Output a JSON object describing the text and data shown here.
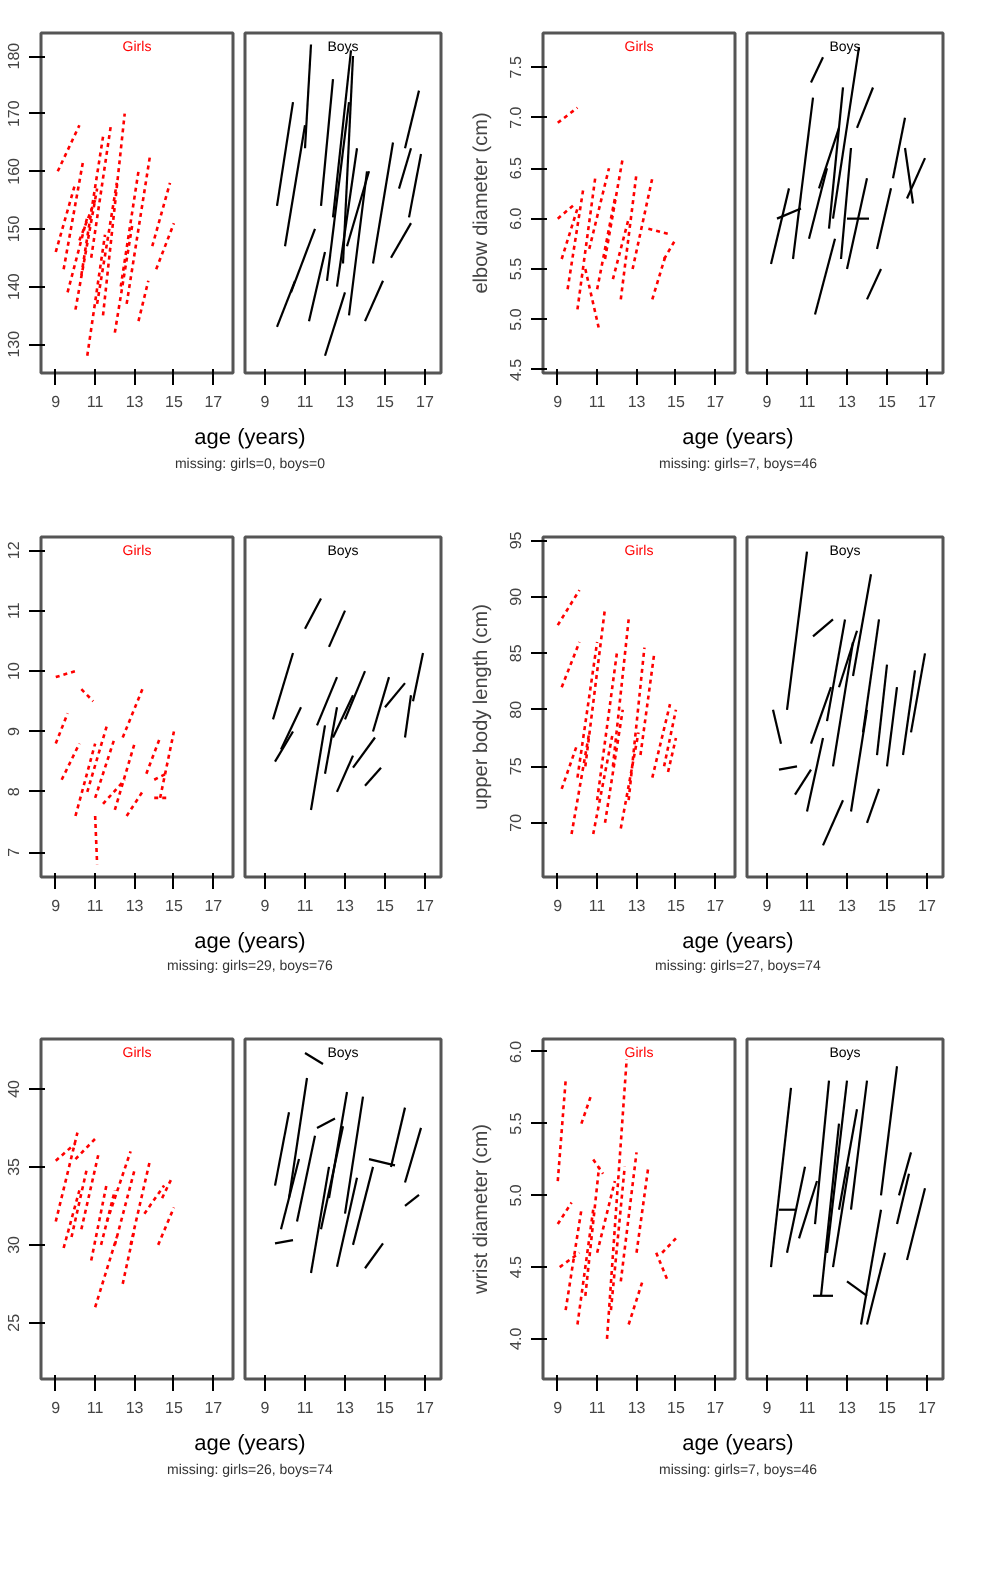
{
  "chart_data": [
    {
      "type": "line",
      "title": "Girls",
      "color": "#ff0000",
      "line_style": "dotted",
      "xlabel": "age (years)",
      "annotations": [
        "missing: girls=0, boys=0"
      ],
      "xlim": [
        8.25,
        18
      ],
      "xticks": [
        9,
        11,
        13,
        15,
        17
      ],
      "ylim": [
        125,
        184
      ],
      "yticks": [
        130,
        140,
        150,
        160,
        170,
        180
      ],
      "series": [
        {
          "x": [
            9.0,
            10.0
          ],
          "values": [
            146,
            158
          ]
        },
        {
          "x": [
            9.1,
            10.2
          ],
          "values": [
            160,
            168
          ]
        },
        {
          "x": [
            9.6,
            10.6
          ],
          "values": [
            139,
            152
          ]
        },
        {
          "x": [
            10.0,
            11.1
          ],
          "values": [
            136,
            157
          ]
        },
        {
          "x": [
            10.3,
            11.4
          ],
          "values": [
            142,
            166
          ]
        },
        {
          "x": [
            10.6,
            11.5
          ],
          "values": [
            128,
            149
          ]
        },
        {
          "x": [
            10.8,
            11.8
          ],
          "values": [
            145,
            168
          ]
        },
        {
          "x": [
            11.1,
            12.1
          ],
          "values": [
            137,
            158
          ]
        },
        {
          "x": [
            11.4,
            12.5
          ],
          "values": [
            135,
            170
          ]
        },
        {
          "x": [
            12.0,
            12.9
          ],
          "values": [
            132,
            151
          ]
        },
        {
          "x": [
            12.3,
            13.2
          ],
          "values": [
            140,
            160
          ]
        },
        {
          "x": [
            12.6,
            13.8
          ],
          "values": [
            137,
            163
          ]
        },
        {
          "x": [
            13.2,
            13.7
          ],
          "values": [
            134,
            141
          ]
        },
        {
          "x": [
            13.9,
            14.8
          ],
          "values": [
            147,
            158
          ]
        },
        {
          "x": [
            14.1,
            15.0
          ],
          "values": [
            143,
            151
          ]
        },
        {
          "x": [
            9.4,
            10.4
          ],
          "values": [
            143,
            162
          ]
        },
        {
          "x": [
            10.2,
            11.0
          ],
          "values": [
            148,
            155
          ]
        }
      ]
    },
    {
      "type": "line",
      "title": "Boys",
      "color": "#000000",
      "line_style": "solid",
      "tick_labels": "x",
      "xlim": [
        8,
        17.8
      ],
      "xticks": [
        9,
        11,
        13,
        15,
        17
      ],
      "ylim": [
        125,
        184
      ],
      "series": [
        {
          "x": [
            9.6,
            10.4
          ],
          "values": [
            154,
            172
          ]
        },
        {
          "x": [
            9.6,
            10.5
          ],
          "values": [
            133,
            141
          ]
        },
        {
          "x": [
            10.0,
            11.0
          ],
          "values": [
            147,
            168
          ]
        },
        {
          "x": [
            11.0,
            11.3
          ],
          "values": [
            164,
            182
          ]
        },
        {
          "x": [
            10.3,
            11.5
          ],
          "values": [
            139,
            150
          ]
        },
        {
          "x": [
            11.2,
            12.0
          ],
          "values": [
            134,
            146
          ]
        },
        {
          "x": [
            11.8,
            12.4
          ],
          "values": [
            154,
            176
          ]
        },
        {
          "x": [
            12.0,
            13.0
          ],
          "values": [
            128,
            139
          ]
        },
        {
          "x": [
            12.1,
            13.2
          ],
          "values": [
            141,
            172
          ]
        },
        {
          "x": [
            12.4,
            13.3
          ],
          "values": [
            152,
            181
          ]
        },
        {
          "x": [
            12.6,
            13.6
          ],
          "values": [
            140,
            164
          ]
        },
        {
          "x": [
            12.9,
            13.4
          ],
          "values": [
            144,
            180
          ]
        },
        {
          "x": [
            13.1,
            14.2
          ],
          "values": [
            147,
            160
          ]
        },
        {
          "x": [
            13.2,
            14.1
          ],
          "values": [
            135,
            160
          ]
        },
        {
          "x": [
            14.0,
            14.9
          ],
          "values": [
            134,
            141
          ]
        },
        {
          "x": [
            14.4,
            15.4
          ],
          "values": [
            144,
            165
          ]
        },
        {
          "x": [
            15.3,
            16.3
          ],
          "values": [
            145,
            151
          ]
        },
        {
          "x": [
            15.7,
            16.3
          ],
          "values": [
            157,
            164
          ]
        },
        {
          "x": [
            16.0,
            16.7
          ],
          "values": [
            164,
            174
          ]
        },
        {
          "x": [
            16.2,
            16.8
          ],
          "values": [
            152,
            163
          ]
        }
      ]
    },
    {
      "type": "line",
      "title": "Girls",
      "color": "#ff0000",
      "line_style": "dotted",
      "xlabel": "age (years)",
      "ylabel": "elbow diameter (cm)",
      "annotations": [
        "missing: girls=7, boys=46"
      ],
      "xlim": [
        8.25,
        18
      ],
      "xticks": [
        9,
        11,
        13,
        15,
        17
      ],
      "ylim": [
        4.47,
        7.84
      ],
      "yticks": [
        {
          "value": 4.5,
          "label": "4.5"
        },
        {
          "value": 5,
          "label": "5.0"
        },
        {
          "value": 5.5,
          "label": "5.5"
        },
        {
          "value": 6,
          "label": "6.0"
        },
        {
          "value": 6.5,
          "label": "6.5"
        },
        {
          "value": 7,
          "label": "7.0"
        },
        {
          "value": 7.5,
          "label": "7.5"
        }
      ],
      "series": [
        {
          "x": [
            9.0,
            10.0
          ],
          "values": [
            6.95,
            7.1
          ]
        },
        {
          "x": [
            9.0,
            9.9
          ],
          "values": [
            6.0,
            6.15
          ]
        },
        {
          "x": [
            9.2,
            10.0
          ],
          "values": [
            5.6,
            6.1
          ]
        },
        {
          "x": [
            9.5,
            10.3
          ],
          "values": [
            5.3,
            6.3
          ]
        },
        {
          "x": [
            10.0,
            10.9
          ],
          "values": [
            5.1,
            6.4
          ]
        },
        {
          "x": [
            10.4,
            11.1
          ],
          "values": [
            5.5,
            4.9
          ]
        },
        {
          "x": [
            10.6,
            11.6
          ],
          "values": [
            5.7,
            6.5
          ]
        },
        {
          "x": [
            11.0,
            11.9
          ],
          "values": [
            5.3,
            6.2
          ]
        },
        {
          "x": [
            11.4,
            12.3
          ],
          "values": [
            5.6,
            6.6
          ]
        },
        {
          "x": [
            11.8,
            12.6
          ],
          "values": [
            5.4,
            6.0
          ]
        },
        {
          "x": [
            12.2,
            13.0
          ],
          "values": [
            5.2,
            6.45
          ]
        },
        {
          "x": [
            12.8,
            13.8
          ],
          "values": [
            5.5,
            6.4
          ]
        },
        {
          "x": [
            13.6,
            14.6
          ],
          "values": [
            5.9,
            5.85
          ]
        },
        {
          "x": [
            13.8,
            14.5
          ],
          "values": [
            5.2,
            5.65
          ]
        },
        {
          "x": [
            14.4,
            15.0
          ],
          "values": [
            5.6,
            5.8
          ]
        }
      ]
    },
    {
      "type": "line",
      "title": "Boys",
      "color": "#000000",
      "line_style": "solid",
      "tick_labels": "x",
      "xlim": [
        8,
        17.8
      ],
      "xticks": [
        9,
        11,
        13,
        15,
        17
      ],
      "ylim": [
        4.47,
        7.84
      ],
      "series": [
        {
          "x": [
            9.2,
            10.1
          ],
          "values": [
            5.55,
            6.3
          ]
        },
        {
          "x": [
            9.5,
            10.7
          ],
          "values": [
            6.0,
            6.1
          ]
        },
        {
          "x": [
            10.3,
            11.3
          ],
          "values": [
            5.6,
            7.2
          ]
        },
        {
          "x": [
            11.1,
            12.0
          ],
          "values": [
            5.8,
            6.5
          ]
        },
        {
          "x": [
            11.2,
            11.8
          ],
          "values": [
            7.35,
            7.6
          ]
        },
        {
          "x": [
            11.4,
            12.4
          ],
          "values": [
            5.05,
            5.8
          ]
        },
        {
          "x": [
            11.6,
            12.6
          ],
          "values": [
            6.3,
            6.9
          ]
        },
        {
          "x": [
            12.1,
            12.8
          ],
          "values": [
            5.9,
            7.3
          ]
        },
        {
          "x": [
            12.3,
            13.6
          ],
          "values": [
            6.0,
            7.7
          ]
        },
        {
          "x": [
            12.7,
            13.2
          ],
          "values": [
            5.6,
            6.7
          ]
        },
        {
          "x": [
            13.0,
            14.0
          ],
          "values": [
            5.5,
            6.4
          ]
        },
        {
          "x": [
            13.0,
            14.1
          ],
          "values": [
            6.0,
            6.0
          ]
        },
        {
          "x": [
            13.5,
            14.3
          ],
          "values": [
            6.9,
            7.3
          ]
        },
        {
          "x": [
            14.0,
            14.7
          ],
          "values": [
            5.2,
            5.5
          ]
        },
        {
          "x": [
            14.5,
            15.2
          ],
          "values": [
            5.7,
            6.3
          ]
        },
        {
          "x": [
            15.3,
            15.9
          ],
          "values": [
            6.4,
            7.0
          ]
        },
        {
          "x": [
            15.9,
            16.3
          ],
          "values": [
            6.7,
            6.15
          ]
        },
        {
          "x": [
            16.0,
            16.9
          ],
          "values": [
            6.2,
            6.6
          ]
        }
      ]
    },
    {
      "type": "line",
      "title": "Girls",
      "color": "#ff0000",
      "line_style": "dotted",
      "xlabel": "age (years)",
      "annotations": [
        "missing: girls=29, boys=76"
      ],
      "xlim": [
        8.25,
        18
      ],
      "xticks": [
        9,
        11,
        13,
        15,
        17
      ],
      "ylim": [
        6.59,
        12.22
      ],
      "yticks": [
        7,
        8,
        9,
        10,
        11,
        12
      ],
      "series": [
        {
          "x": [
            9.0,
            10.0
          ],
          "values": [
            9.9,
            10.0
          ]
        },
        {
          "x": [
            9.0,
            9.6
          ],
          "values": [
            8.8,
            9.3
          ]
        },
        {
          "x": [
            9.3,
            10.2
          ],
          "values": [
            8.2,
            8.8
          ]
        },
        {
          "x": [
            10.0,
            11.0
          ],
          "values": [
            7.6,
            8.8
          ]
        },
        {
          "x": [
            10.3,
            10.9
          ],
          "values": [
            9.7,
            9.5
          ]
        },
        {
          "x": [
            10.6,
            11.6
          ],
          "values": [
            8.0,
            9.1
          ]
        },
        {
          "x": [
            11.0,
            11.1
          ],
          "values": [
            7.6,
            6.8
          ]
        },
        {
          "x": [
            11.0,
            12.0
          ],
          "values": [
            7.9,
            8.9
          ]
        },
        {
          "x": [
            11.4,
            12.5
          ],
          "values": [
            7.8,
            8.2
          ]
        },
        {
          "x": [
            12.0,
            13.0
          ],
          "values": [
            7.7,
            8.8
          ]
        },
        {
          "x": [
            12.4,
            13.4
          ],
          "values": [
            8.9,
            9.7
          ]
        },
        {
          "x": [
            12.6,
            13.4
          ],
          "values": [
            7.6,
            8.0
          ]
        },
        {
          "x": [
            13.6,
            14.3
          ],
          "values": [
            8.3,
            8.9
          ]
        },
        {
          "x": [
            14.0,
            14.6
          ],
          "values": [
            8.2,
            8.3
          ]
        },
        {
          "x": [
            14.3,
            15.0
          ],
          "values": [
            7.9,
            9.0
          ]
        },
        {
          "x": [
            14.0,
            14.8
          ],
          "values": [
            7.9,
            7.9
          ]
        }
      ]
    },
    {
      "type": "line",
      "title": "Boys",
      "color": "#000000",
      "line_style": "solid",
      "tick_labels": "x",
      "xlim": [
        8,
        17.8
      ],
      "xticks": [
        9,
        11,
        13,
        15,
        17
      ],
      "ylim": [
        6.59,
        12.22
      ],
      "series": [
        {
          "x": [
            9.4,
            10.4
          ],
          "values": [
            9.2,
            10.3
          ]
        },
        {
          "x": [
            9.5,
            10.4
          ],
          "values": [
            8.5,
            9.0
          ]
        },
        {
          "x": [
            9.8,
            10.8
          ],
          "values": [
            8.7,
            9.4
          ]
        },
        {
          "x": [
            11.0,
            11.8
          ],
          "values": [
            10.7,
            11.2
          ]
        },
        {
          "x": [
            11.3,
            12.0
          ],
          "values": [
            7.7,
            9.1
          ]
        },
        {
          "x": [
            11.6,
            12.6
          ],
          "values": [
            9.1,
            9.9
          ]
        },
        {
          "x": [
            12.0,
            12.6
          ],
          "values": [
            8.3,
            9.4
          ]
        },
        {
          "x": [
            12.2,
            13.0
          ],
          "values": [
            10.4,
            11.0
          ]
        },
        {
          "x": [
            12.4,
            13.4
          ],
          "values": [
            8.9,
            9.6
          ]
        },
        {
          "x": [
            12.6,
            13.4
          ],
          "values": [
            8.0,
            8.6
          ]
        },
        {
          "x": [
            13.0,
            14.0
          ],
          "values": [
            9.2,
            10.0
          ]
        },
        {
          "x": [
            13.4,
            14.5
          ],
          "values": [
            8.4,
            8.9
          ]
        },
        {
          "x": [
            14.0,
            14.8
          ],
          "values": [
            8.1,
            8.4
          ]
        },
        {
          "x": [
            14.4,
            15.2
          ],
          "values": [
            9.0,
            9.9
          ]
        },
        {
          "x": [
            15.0,
            16.0
          ],
          "values": [
            9.4,
            9.8
          ]
        },
        {
          "x": [
            16.0,
            16.3
          ],
          "values": [
            8.9,
            9.6
          ]
        },
        {
          "x": [
            16.4,
            16.9
          ],
          "values": [
            9.5,
            10.3
          ]
        }
      ]
    },
    {
      "type": "line",
      "title": "Girls",
      "color": "#ff0000",
      "line_style": "dotted",
      "xlabel": "age (years)",
      "ylabel": "upper body length (cm)",
      "annotations": [
        "missing: girls=27, boys=74"
      ],
      "xlim": [
        8.25,
        18
      ],
      "xticks": [
        9,
        11,
        13,
        15,
        17
      ],
      "ylim": [
        65.2,
        95.3
      ],
      "yticks": [
        70,
        75,
        80,
        85,
        90,
        95
      ],
      "series": [
        {
          "x": [
            9.0,
            10.1
          ],
          "values": [
            87.5,
            90.6
          ]
        },
        {
          "x": [
            9.2,
            10.1
          ],
          "values": [
            82,
            86
          ]
        },
        {
          "x": [
            9.2,
            10.0
          ],
          "values": [
            73,
            77
          ]
        },
        {
          "x": [
            9.7,
            10.6
          ],
          "values": [
            69,
            78
          ]
        },
        {
          "x": [
            10.0,
            11.0
          ],
          "values": [
            74,
            86
          ]
        },
        {
          "x": [
            10.4,
            11.4
          ],
          "values": [
            75,
            89
          ]
        },
        {
          "x": [
            10.8,
            11.8
          ],
          "values": [
            69,
            78
          ]
        },
        {
          "x": [
            11.0,
            12.0
          ],
          "values": [
            72,
            85
          ]
        },
        {
          "x": [
            11.4,
            12.3
          ],
          "values": [
            70,
            80
          ]
        },
        {
          "x": [
            11.8,
            12.6
          ],
          "values": [
            75,
            88
          ]
        },
        {
          "x": [
            12.2,
            13.1
          ],
          "values": [
            69.5,
            78
          ]
        },
        {
          "x": [
            12.6,
            13.4
          ],
          "values": [
            72,
            85.5
          ]
        },
        {
          "x": [
            13.2,
            13.9
          ],
          "values": [
            76,
            85
          ]
        },
        {
          "x": [
            13.8,
            14.7
          ],
          "values": [
            74,
            80.5
          ]
        },
        {
          "x": [
            14.4,
            15.0
          ],
          "values": [
            75,
            80
          ]
        },
        {
          "x": [
            14.6,
            15.0
          ],
          "values": [
            74.5,
            77.5
          ]
        }
      ]
    },
    {
      "type": "line",
      "title": "Boys",
      "color": "#000000",
      "line_style": "solid",
      "tick_labels": "x",
      "xlim": [
        8,
        17.8
      ],
      "xticks": [
        9,
        11,
        13,
        15,
        17
      ],
      "ylim": [
        65.2,
        95.3
      ],
      "series": [
        {
          "x": [
            9.3,
            9.7
          ],
          "values": [
            80,
            77
          ]
        },
        {
          "x": [
            9.6,
            10.5
          ],
          "values": [
            74.7,
            75
          ]
        },
        {
          "x": [
            10.0,
            11.0
          ],
          "values": [
            80,
            94
          ]
        },
        {
          "x": [
            10.4,
            11.2
          ],
          "values": [
            72.5,
            74.7
          ]
        },
        {
          "x": [
            11.0,
            11.8
          ],
          "values": [
            71,
            77.5
          ]
        },
        {
          "x": [
            11.2,
            12.2
          ],
          "values": [
            77,
            82
          ]
        },
        {
          "x": [
            11.3,
            12.3
          ],
          "values": [
            86.5,
            88
          ]
        },
        {
          "x": [
            11.8,
            12.8
          ],
          "values": [
            68,
            72
          ]
        },
        {
          "x": [
            12.0,
            12.9
          ],
          "values": [
            79,
            88
          ]
        },
        {
          "x": [
            12.3,
            13.3
          ],
          "values": [
            75,
            86
          ]
        },
        {
          "x": [
            12.6,
            13.5
          ],
          "values": [
            82,
            87
          ]
        },
        {
          "x": [
            13.2,
            14.0
          ],
          "values": [
            71,
            80
          ]
        },
        {
          "x": [
            13.3,
            14.2
          ],
          "values": [
            83,
            92
          ]
        },
        {
          "x": [
            13.8,
            14.6
          ],
          "values": [
            78,
            88
          ]
        },
        {
          "x": [
            14.0,
            14.6
          ],
          "values": [
            70,
            73
          ]
        },
        {
          "x": [
            14.5,
            15.0
          ],
          "values": [
            76,
            84
          ]
        },
        {
          "x": [
            15.0,
            15.5
          ],
          "values": [
            75,
            82
          ]
        },
        {
          "x": [
            15.8,
            16.4
          ],
          "values": [
            76,
            83.5
          ]
        },
        {
          "x": [
            16.2,
            16.9
          ],
          "values": [
            78,
            85
          ]
        }
      ]
    },
    {
      "type": "line",
      "title": "Girls",
      "color": "#ff0000",
      "line_style": "dotted",
      "xlabel": "age (years)",
      "annotations": [
        "missing: girls=26, boys=74"
      ],
      "xlim": [
        8.25,
        18
      ],
      "xticks": [
        9,
        11,
        13,
        15,
        17
      ],
      "ylim": [
        21.4,
        43.2
      ],
      "yticks": [
        25,
        30,
        35,
        40
      ],
      "series": [
        {
          "x": [
            9.0,
            10.1
          ],
          "values": [
            31.5,
            37.2
          ]
        },
        {
          "x": [
            9.0,
            10.0
          ],
          "values": [
            35.4,
            36.5
          ]
        },
        {
          "x": [
            9.4,
            10.2
          ],
          "values": [
            29.8,
            33.5
          ]
        },
        {
          "x": [
            9.8,
            10.6
          ],
          "values": [
            30.5,
            35
          ]
        },
        {
          "x": [
            10.0,
            11.0
          ],
          "values": [
            35.5,
            36.8
          ]
        },
        {
          "x": [
            10.3,
            11.2
          ],
          "values": [
            31,
            36
          ]
        },
        {
          "x": [
            10.8,
            11.6
          ],
          "values": [
            29,
            34
          ]
        },
        {
          "x": [
            11.0,
            12.1
          ],
          "values": [
            26,
            30.5
          ]
        },
        {
          "x": [
            11.3,
            12.0
          ],
          "values": [
            30,
            33.5
          ]
        },
        {
          "x": [
            11.6,
            12.8
          ],
          "values": [
            31.5,
            36
          ]
        },
        {
          "x": [
            12.0,
            13.0
          ],
          "values": [
            30,
            34.8
          ]
        },
        {
          "x": [
            12.4,
            13.0
          ],
          "values": [
            27.5,
            31
          ]
        },
        {
          "x": [
            12.8,
            13.8
          ],
          "values": [
            30,
            35.5
          ]
        },
        {
          "x": [
            13.5,
            14.5
          ],
          "values": [
            32,
            33.8
          ]
        },
        {
          "x": [
            14.2,
            15.0
          ],
          "values": [
            30,
            32.4
          ]
        },
        {
          "x": [
            14.4,
            14.9
          ],
          "values": [
            33,
            34.3
          ]
        }
      ]
    },
    {
      "type": "line",
      "title": "Boys",
      "color": "#000000",
      "line_style": "solid",
      "tick_labels": "x",
      "xlim": [
        8,
        17.8
      ],
      "xticks": [
        9,
        11,
        13,
        15,
        17
      ],
      "ylim": [
        21.4,
        43.2
      ],
      "series": [
        {
          "x": [
            9.5,
            10.4
          ],
          "values": [
            30.1,
            30.3
          ]
        },
        {
          "x": [
            9.5,
            10.2
          ],
          "values": [
            33.8,
            38.5
          ]
        },
        {
          "x": [
            9.8,
            10.7
          ],
          "values": [
            31,
            35.5
          ]
        },
        {
          "x": [
            10.2,
            11.1
          ],
          "values": [
            33,
            40.7
          ]
        },
        {
          "x": [
            10.6,
            11.5
          ],
          "values": [
            31.5,
            37
          ]
        },
        {
          "x": [
            11.0,
            11.9
          ],
          "values": [
            42.3,
            41.6
          ]
        },
        {
          "x": [
            11.3,
            12.2
          ],
          "values": [
            28.2,
            35
          ]
        },
        {
          "x": [
            11.6,
            12.5
          ],
          "values": [
            37.5,
            38.1
          ]
        },
        {
          "x": [
            11.8,
            12.9
          ],
          "values": [
            31,
            37.6
          ]
        },
        {
          "x": [
            12.2,
            13.1
          ],
          "values": [
            33,
            39.8
          ]
        },
        {
          "x": [
            12.6,
            13.6
          ],
          "values": [
            28.6,
            34.3
          ]
        },
        {
          "x": [
            13.0,
            13.9
          ],
          "values": [
            32,
            39.5
          ]
        },
        {
          "x": [
            13.4,
            14.4
          ],
          "values": [
            30,
            35
          ]
        },
        {
          "x": [
            14.0,
            14.9
          ],
          "values": [
            28.5,
            30.1
          ]
        },
        {
          "x": [
            14.2,
            15.5
          ],
          "values": [
            35.5,
            35.1
          ]
        },
        {
          "x": [
            15.3,
            16.0
          ],
          "values": [
            35,
            38.8
          ]
        },
        {
          "x": [
            16.0,
            16.8
          ],
          "values": [
            34,
            37.5
          ]
        },
        {
          "x": [
            16.0,
            16.7
          ],
          "values": [
            32.5,
            33.2
          ]
        }
      ]
    },
    {
      "type": "line",
      "title": "Girls",
      "color": "#ff0000",
      "line_style": "dotted",
      "xlabel": "age (years)",
      "ylabel": "wrist diameter (cm)",
      "annotations": [
        "missing: girls=7, boys=46"
      ],
      "xlim": [
        8.25,
        18
      ],
      "xticks": [
        9,
        11,
        13,
        15,
        17
      ],
      "ylim": [
        3.72,
        6.09
      ],
      "yticks": [
        {
          "value": 4,
          "label": "4.0"
        },
        {
          "value": 4.5,
          "label": "4.5"
        },
        {
          "value": 5,
          "label": "5.0"
        },
        {
          "value": 5.5,
          "label": "5.5"
        },
        {
          "value": 6,
          "label": "6.0"
        }
      ],
      "series": [
        {
          "x": [
            9.0,
            9.4
          ],
          "values": [
            5.1,
            5.8
          ]
        },
        {
          "x": [
            9.0,
            9.7
          ],
          "values": [
            4.8,
            4.95
          ]
        },
        {
          "x": [
            9.1,
            10.1
          ],
          "values": [
            4.5,
            4.6
          ]
        },
        {
          "x": [
            9.4,
            10.2
          ],
          "values": [
            4.2,
            4.9
          ]
        },
        {
          "x": [
            10.2,
            10.7
          ],
          "values": [
            5.5,
            5.7
          ]
        },
        {
          "x": [
            10.0,
            10.8
          ],
          "values": [
            4.1,
            4.9
          ]
        },
        {
          "x": [
            10.4,
            11.1
          ],
          "values": [
            4.3,
            5.2
          ]
        },
        {
          "x": [
            10.8,
            11.3
          ],
          "values": [
            5.25,
            5.15
          ]
        },
        {
          "x": [
            11.0,
            11.9
          ],
          "values": [
            4.6,
            5.1
          ]
        },
        {
          "x": [
            11.5,
            12.5
          ],
          "values": [
            4.0,
            5.95
          ]
        },
        {
          "x": [
            11.7,
            12.4
          ],
          "values": [
            4.2,
            5.2
          ]
        },
        {
          "x": [
            12.2,
            13.0
          ],
          "values": [
            4.4,
            5.3
          ]
        },
        {
          "x": [
            12.6,
            13.3
          ],
          "values": [
            4.1,
            4.4
          ]
        },
        {
          "x": [
            13.0,
            13.6
          ],
          "values": [
            4.6,
            5.2
          ]
        },
        {
          "x": [
            14.0,
            14.6
          ],
          "values": [
            4.6,
            4.4
          ]
        },
        {
          "x": [
            14.3,
            15.0
          ],
          "values": [
            4.6,
            4.7
          ]
        }
      ]
    },
    {
      "type": "line",
      "title": "Boys",
      "color": "#000000",
      "line_style": "solid",
      "tick_labels": "x",
      "xlim": [
        8,
        17.8
      ],
      "xticks": [
        9,
        11,
        13,
        15,
        17
      ],
      "ylim": [
        3.72,
        6.09
      ],
      "series": [
        {
          "x": [
            9.2,
            10.2
          ],
          "values": [
            4.5,
            5.75
          ]
        },
        {
          "x": [
            9.6,
            10.4
          ],
          "values": [
            4.9,
            4.9
          ]
        },
        {
          "x": [
            10.0,
            10.9
          ],
          "values": [
            4.6,
            5.2
          ]
        },
        {
          "x": [
            10.6,
            11.5
          ],
          "values": [
            4.7,
            5.1
          ]
        },
        {
          "x": [
            11.3,
            12.3
          ],
          "values": [
            4.3,
            4.3
          ]
        },
        {
          "x": [
            11.4,
            12.1
          ],
          "values": [
            4.8,
            5.8
          ]
        },
        {
          "x": [
            11.7,
            12.6
          ],
          "values": [
            4.3,
            5.5
          ]
        },
        {
          "x": [
            12.0,
            13.0
          ],
          "values": [
            4.6,
            5.8
          ]
        },
        {
          "x": [
            12.3,
            13.1
          ],
          "values": [
            4.5,
            5.2
          ]
        },
        {
          "x": [
            12.6,
            13.5
          ],
          "values": [
            4.9,
            5.6
          ]
        },
        {
          "x": [
            13.0,
            14.0
          ],
          "values": [
            4.4,
            4.3
          ]
        },
        {
          "x": [
            13.2,
            14.0
          ],
          "values": [
            4.9,
            5.8
          ]
        },
        {
          "x": [
            13.7,
            14.7
          ],
          "values": [
            4.1,
            4.9
          ]
        },
        {
          "x": [
            14.0,
            14.9
          ],
          "values": [
            4.1,
            4.6
          ]
        },
        {
          "x": [
            14.7,
            15.5
          ],
          "values": [
            5.0,
            5.9
          ]
        },
        {
          "x": [
            15.6,
            16.2
          ],
          "values": [
            5.0,
            5.3
          ]
        },
        {
          "x": [
            16.0,
            16.9
          ],
          "values": [
            4.55,
            5.05
          ]
        },
        {
          "x": [
            15.5,
            16.1
          ],
          "values": [
            4.8,
            5.15
          ]
        }
      ]
    }
  ]
}
